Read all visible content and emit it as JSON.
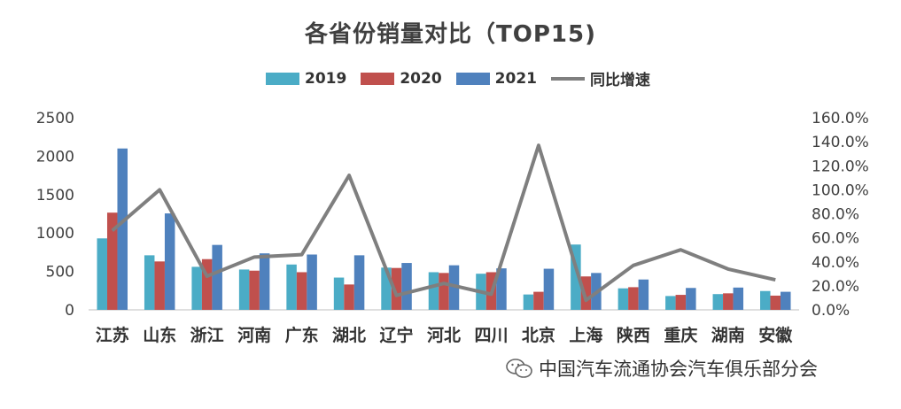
{
  "chart_data": {
    "type": "bar",
    "title": "各省份销量对比（TOP15)",
    "categories": [
      "江苏",
      "山东",
      "浙江",
      "河南",
      "广东",
      "湖北",
      "辽宁",
      "河北",
      "四川",
      "北京",
      "上海",
      "陕西",
      "重庆",
      "湖南",
      "安徽"
    ],
    "series": [
      {
        "name": "2019",
        "color": "#4BACC6",
        "values": [
          930,
          710,
          560,
          525,
          590,
          420,
          550,
          490,
          470,
          200,
          850,
          280,
          180,
          205,
          245
        ]
      },
      {
        "name": "2020",
        "color": "#C0504D",
        "values": [
          1265,
          630,
          660,
          510,
          490,
          330,
          545,
          480,
          490,
          235,
          435,
          295,
          195,
          215,
          185
        ]
      },
      {
        "name": "2021",
        "color": "#4F81BD",
        "values": [
          2100,
          1255,
          845,
          735,
          720,
          710,
          610,
          580,
          540,
          535,
          480,
          395,
          285,
          290,
          235
        ]
      },
      {
        "name": "同比增速",
        "type": "line",
        "color": "#7F7F7F",
        "axis": "right",
        "values": [
          0.66,
          1.0,
          0.28,
          0.44,
          0.46,
          1.12,
          0.12,
          0.22,
          0.13,
          1.37,
          0.08,
          0.37,
          0.5,
          0.34,
          0.25
        ]
      }
    ],
    "y_left": {
      "ticks": [
        "0",
        "500",
        "1000",
        "1500",
        "2000",
        "2500"
      ],
      "range": [
        0,
        2500
      ]
    },
    "y_right": {
      "ticks": [
        "0.0%",
        "20.0%",
        "40.0%",
        "60.0%",
        "80.0%",
        "100.0%",
        "120.0%",
        "140.0%",
        "160.0%"
      ],
      "range": [
        0,
        1.6
      ]
    },
    "legend_position": "top",
    "grid": false
  },
  "legend": {
    "items": [
      "2019",
      "2020",
      "2021",
      "同比增速"
    ]
  },
  "watermark": {
    "text": "中国汽车流通协会汽车俱乐部分会",
    "icon": "wechat-icon"
  }
}
